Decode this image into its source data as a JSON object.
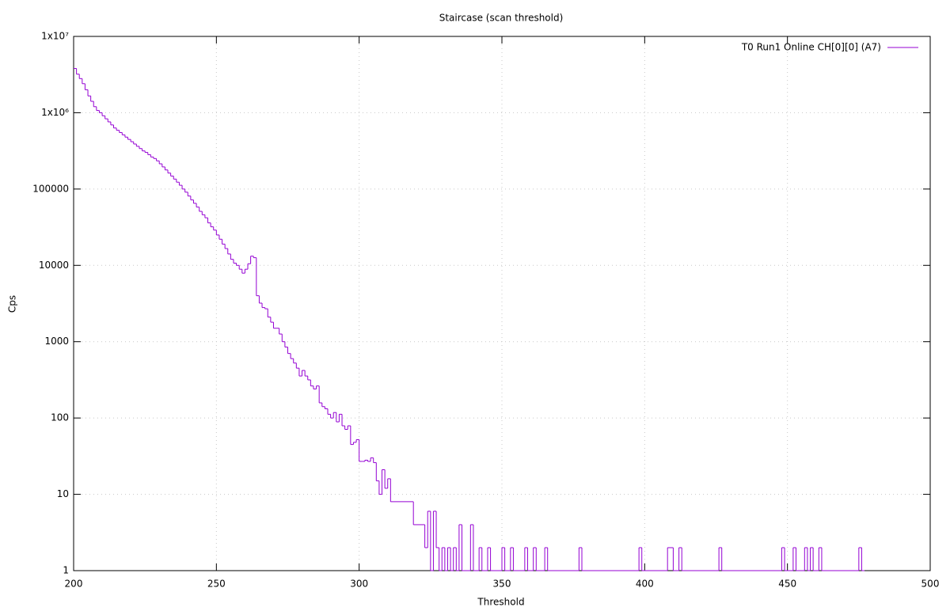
{
  "chart_data": {
    "type": "step",
    "title": "Staircase (scan threshold)",
    "xlabel": "Threshold",
    "ylabel": "Cps",
    "log_y": true,
    "grid": true,
    "legend": "top-right",
    "xlim": [
      200,
      500
    ],
    "xticks": [
      200,
      250,
      300,
      350,
      400,
      450,
      500
    ],
    "ylim": [
      1,
      10000000
    ],
    "yticks": [
      1,
      10,
      100,
      1000,
      10000,
      100000,
      {
        "value": 1000000,
        "label": "1x10⁶"
      },
      {
        "value": 10000000,
        "label": "1x10⁷"
      }
    ],
    "series": [
      {
        "name": "T0 Run1 Online CH[0][0] (A7)",
        "color": "#9400d3",
        "x": [
          200,
          201,
          202,
          203,
          204,
          205,
          206,
          207,
          208,
          209,
          210,
          211,
          212,
          213,
          214,
          215,
          216,
          217,
          218,
          219,
          220,
          221,
          222,
          223,
          224,
          225,
          226,
          227,
          228,
          229,
          230,
          231,
          232,
          233,
          234,
          235,
          236,
          237,
          238,
          239,
          240,
          241,
          242,
          243,
          244,
          245,
          246,
          247,
          248,
          249,
          250,
          251,
          252,
          253,
          254,
          255,
          256,
          257,
          258,
          259,
          260,
          261,
          262,
          263,
          264,
          265,
          266,
          267,
          268,
          269,
          270,
          271,
          272,
          273,
          274,
          275,
          276,
          277,
          278,
          279,
          280,
          281,
          282,
          283,
          284,
          285,
          286,
          287,
          288,
          289,
          290,
          291,
          292,
          293,
          294,
          295,
          296,
          297,
          298,
          299,
          300,
          301,
          302,
          303,
          304,
          305,
          306,
          307,
          308,
          309,
          310,
          311,
          319,
          323,
          324,
          325,
          326,
          327,
          328,
          329,
          330,
          331,
          332,
          333,
          334,
          335,
          336,
          339,
          340,
          342,
          343,
          345,
          346,
          350,
          351,
          353,
          354,
          358,
          359,
          361,
          362,
          365,
          366,
          377,
          378,
          398,
          399,
          408,
          410,
          412,
          413,
          426,
          427,
          448,
          449,
          452,
          453,
          456,
          457,
          458,
          459,
          461,
          462,
          475,
          476
        ],
        "values": [
          3800000,
          3200000,
          2800000,
          2400000,
          2000000,
          1660000,
          1410000,
          1200000,
          1070000,
          1000000,
          912000,
          832000,
          759000,
          692000,
          631000,
          589000,
          550000,
          513000,
          479000,
          447000,
          417000,
          389000,
          363000,
          339000,
          316000,
          302000,
          282000,
          263000,
          251000,
          234000,
          214000,
          195000,
          178000,
          162000,
          148000,
          135000,
          123000,
          112000,
          100000,
          91000,
          81000,
          72000,
          65000,
          58000,
          51000,
          46000,
          42000,
          36000,
          32000,
          29000,
          25000,
          22000,
          19000,
          16600,
          14100,
          12000,
          10700,
          10000,
          8900,
          7900,
          8900,
          10500,
          13200,
          12600,
          4000,
          3200,
          2800,
          2700,
          2100,
          1800,
          1500,
          1500,
          1260,
          1000,
          850,
          700,
          600,
          525,
          450,
          355,
          420,
          355,
          316,
          263,
          240,
          263,
          158,
          141,
          132,
          112,
          100,
          118,
          89,
          112,
          79,
          71,
          79,
          45,
          48,
          52,
          27,
          27,
          28,
          27,
          30,
          26,
          15,
          10,
          21,
          12,
          16,
          8,
          4,
          2,
          6,
          1,
          6,
          2,
          1,
          2,
          1,
          2,
          1,
          2,
          1,
          4,
          1,
          4,
          1,
          2,
          1,
          2,
          1,
          2,
          1,
          2,
          1,
          2,
          1,
          2,
          1,
          2,
          1,
          2,
          1,
          2,
          1,
          2,
          1,
          2,
          1,
          2,
          1,
          2,
          1,
          2,
          1,
          2,
          1,
          2,
          1,
          2,
          1,
          2,
          1
        ]
      }
    ]
  }
}
